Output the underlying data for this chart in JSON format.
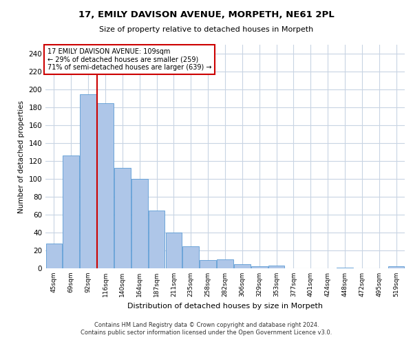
{
  "title1": "17, EMILY DAVISON AVENUE, MORPETH, NE61 2PL",
  "title2": "Size of property relative to detached houses in Morpeth",
  "xlabel": "Distribution of detached houses by size in Morpeth",
  "ylabel": "Number of detached properties",
  "annotation_line1": "17 EMILY DAVISON AVENUE: 109sqm",
  "annotation_line2": "← 29% of detached houses are smaller (259)",
  "annotation_line3": "71% of semi-detached houses are larger (639) →",
  "footer1": "Contains HM Land Registry data © Crown copyright and database right 2024.",
  "footer2": "Contains public sector information licensed under the Open Government Licence v3.0.",
  "categories": [
    "45sqm",
    "69sqm",
    "92sqm",
    "116sqm",
    "140sqm",
    "164sqm",
    "187sqm",
    "211sqm",
    "235sqm",
    "258sqm",
    "282sqm",
    "306sqm",
    "329sqm",
    "353sqm",
    "377sqm",
    "401sqm",
    "424sqm",
    "448sqm",
    "472sqm",
    "495sqm",
    "519sqm"
  ],
  "values": [
    28,
    126,
    195,
    185,
    112,
    100,
    65,
    40,
    25,
    9,
    10,
    5,
    2,
    3,
    0,
    0,
    0,
    1,
    0,
    0,
    2
  ],
  "bar_color": "#aec6e8",
  "bar_edge_color": "#5b9bd5",
  "vline_x": 2.5,
  "vline_color": "#cc0000",
  "annotation_box_color": "#cc0000",
  "grid_color": "#c8d4e3",
  "background_color": "#ffffff",
  "ylim": [
    0,
    250
  ],
  "yticks": [
    0,
    20,
    40,
    60,
    80,
    100,
    120,
    140,
    160,
    180,
    200,
    220,
    240
  ]
}
